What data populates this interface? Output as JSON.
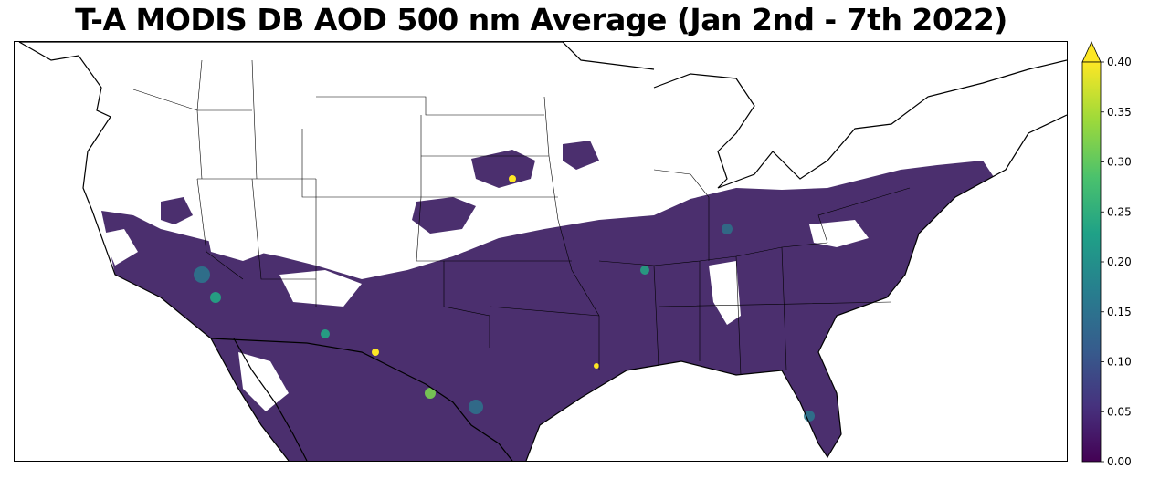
{
  "title": "T-A MODIS DB AOD 500 nm Average (Jan 2nd - 7th 2022)",
  "colorbar": {
    "min": 0.0,
    "max": 0.4,
    "extend": "max",
    "ticks": [
      "0.00",
      "0.05",
      "0.10",
      "0.15",
      "0.20",
      "0.25",
      "0.30",
      "0.35",
      "0.40"
    ],
    "colors": [
      "#440154",
      "#46327e",
      "#365c8d",
      "#277f8e",
      "#1fa187",
      "#4ac16d",
      "#a0da39",
      "#fde725"
    ]
  },
  "map": {
    "region": "Contiguous United States",
    "variable": "AOD 500 nm",
    "projection": "Lambert Conformal",
    "background": "#ffffff",
    "border_color": "#000000",
    "data_base_color": "#4b2f6e",
    "hotspot_colors": [
      "#2a788e",
      "#22a884",
      "#7ad151",
      "#fde725"
    ]
  }
}
